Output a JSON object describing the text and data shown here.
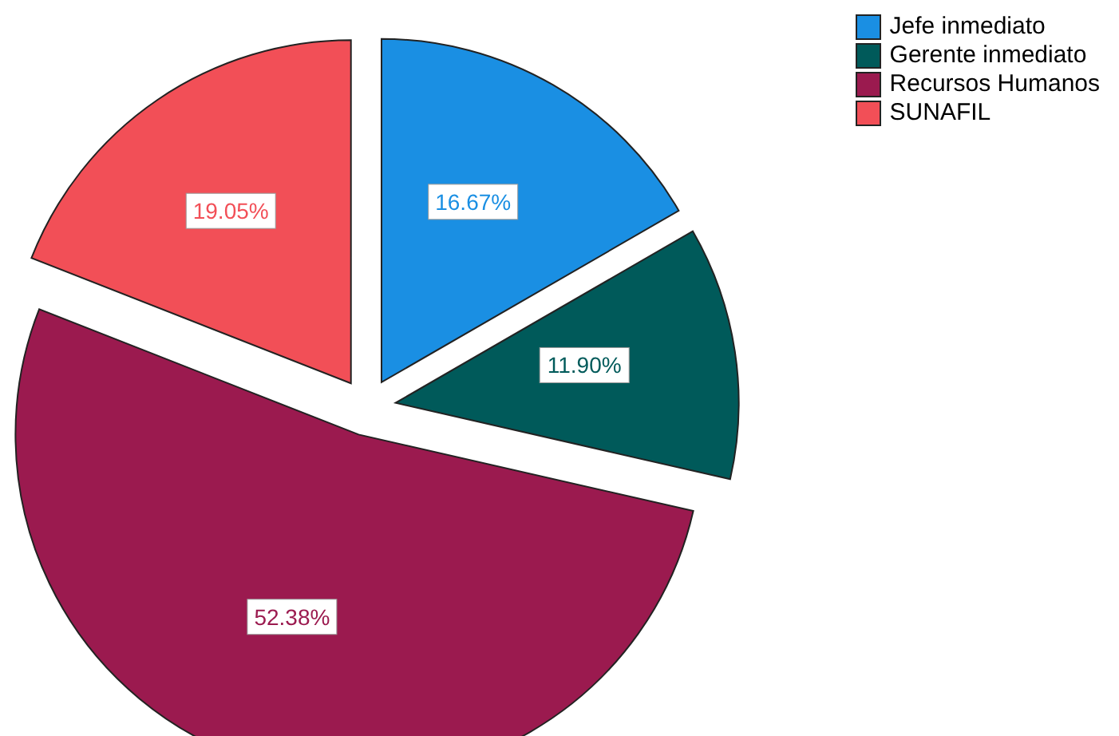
{
  "chart_data": {
    "type": "pie",
    "categories": [
      "Jefe inmediato",
      "Gerente inmediato",
      "Recursos Humanos",
      "SUNAFIL"
    ],
    "values": [
      16.67,
      11.9,
      52.38,
      19.05
    ],
    "colors": [
      "#1a8fe3",
      "#005a5a",
      "#9b1a4f",
      "#f24f57"
    ],
    "value_labels": [
      "16.67%",
      "11.90%",
      "52.38%",
      "19.05%"
    ],
    "legend": "top right"
  }
}
